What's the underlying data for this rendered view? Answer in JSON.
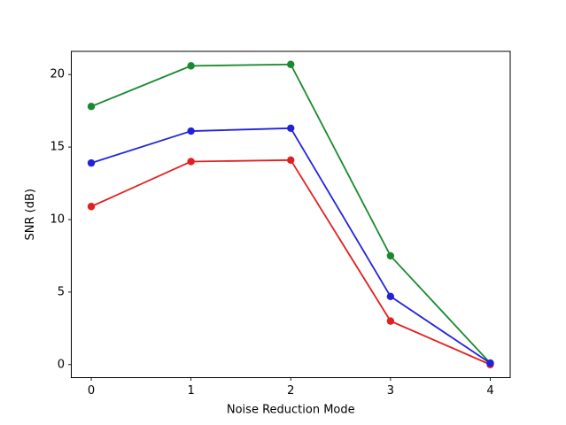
{
  "chart_data": {
    "type": "line",
    "title": "",
    "xlabel": "Noise Reduction Mode",
    "ylabel": "SNR (dB)",
    "x": [
      0,
      1,
      2,
      3,
      4
    ],
    "xticks": [
      0,
      1,
      2,
      3,
      4
    ],
    "yticks": [
      0,
      5,
      10,
      15,
      20
    ],
    "xlim": [
      -0.2,
      4.2
    ],
    "ylim": [
      -0.9,
      21.6
    ],
    "grid": false,
    "legend": "none",
    "marker": "o",
    "axis_color": "#000000",
    "background": "#ffffff",
    "series": [
      {
        "name": "red-series",
        "color": "#e12020",
        "values": [
          10.9,
          14.0,
          14.1,
          3.0,
          0.0
        ]
      },
      {
        "name": "green-series",
        "color": "#1a8a2e",
        "values": [
          17.8,
          20.6,
          20.7,
          7.5,
          0.1
        ]
      },
      {
        "name": "blue-series",
        "color": "#2222dd",
        "values": [
          13.9,
          16.1,
          16.3,
          4.7,
          0.1
        ]
      }
    ]
  }
}
